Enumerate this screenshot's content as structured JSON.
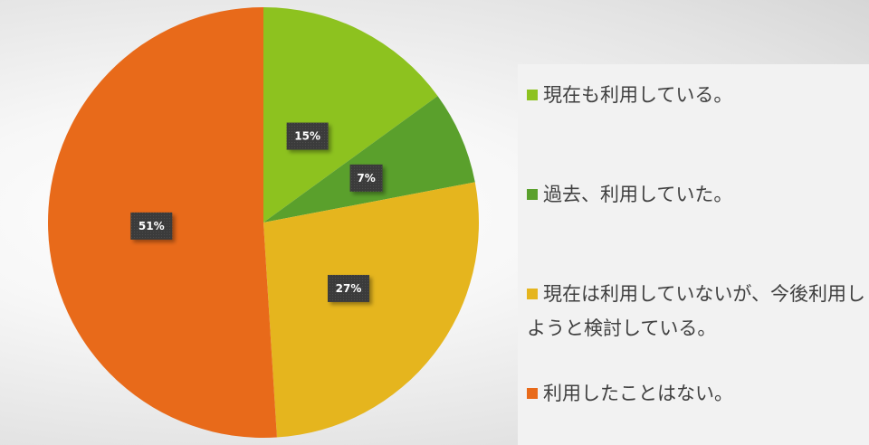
{
  "chart_data": {
    "type": "pie",
    "title": "",
    "start_angle_deg": 0,
    "direction": "clockwise",
    "legend_position": "right",
    "slices": [
      {
        "label": "現在も利用している。",
        "value": 15,
        "display": "15%",
        "color": "#8dc21f"
      },
      {
        "label": "過去、利用していた。",
        "value": 7,
        "display": "7%",
        "color": "#5aa02c"
      },
      {
        "label": "現在は利用していないが、今後利用しようと検討している。",
        "value": 27,
        "display": "27%",
        "color": "#e5b51e"
      },
      {
        "label": "利用したことはない。",
        "value": 51,
        "display": "51%",
        "color": "#e86a1a"
      }
    ]
  }
}
